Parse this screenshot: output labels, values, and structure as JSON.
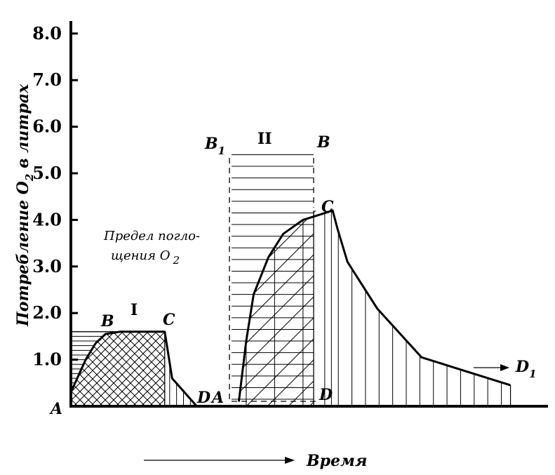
{
  "chart_data": {
    "type": "area",
    "title": "",
    "xlabel": "Время",
    "ylabel_parts": {
      "main": "Потребление O",
      "sub": "2",
      "rest": " в литрах"
    },
    "yticks": [
      "1.0",
      "2.0",
      "3.0",
      "4.0",
      "5.0",
      "6.0",
      "7.0",
      "8.0"
    ],
    "ylim": [
      0,
      8
    ],
    "grid": false,
    "annotation": {
      "line1": "Предел погло-",
      "line2": "щения O",
      "line2_sub": "2"
    },
    "regions": [
      {
        "label": "I",
        "points": {
          "A": "A",
          "B": "B",
          "C": "C",
          "D": "D"
        },
        "curve": [
          {
            "t": 0.0,
            "o2": 0.3
          },
          {
            "t": 0.6,
            "o2": 1.0
          },
          {
            "t": 1.0,
            "o2": 1.35
          },
          {
            "t": 1.4,
            "o2": 1.55
          },
          {
            "t": 2.0,
            "o2": 1.6
          },
          {
            "t": 3.8,
            "o2": 1.6
          },
          {
            "t": 4.1,
            "o2": 0.6
          },
          {
            "t": 4.6,
            "o2": 0.3
          },
          {
            "t": 5.1,
            "o2": 0.0
          }
        ],
        "demand_level": 1.6
      },
      {
        "label": "II",
        "points": {
          "A": "A",
          "B": "B",
          "B1": "B",
          "B1_sub": "1",
          "C": "C",
          "D": "D",
          "D1": "D",
          "D1_sub": "1"
        },
        "curve": [
          {
            "t": 6.8,
            "o2": 0.1
          },
          {
            "t": 7.1,
            "o2": 1.4
          },
          {
            "t": 7.4,
            "o2": 2.4
          },
          {
            "t": 8.0,
            "o2": 3.2
          },
          {
            "t": 8.6,
            "o2": 3.7
          },
          {
            "t": 9.4,
            "o2": 4.0
          },
          {
            "t": 10.3,
            "o2": 4.15
          },
          {
            "t": 10.6,
            "o2": 4.2
          },
          {
            "t": 10.8,
            "o2": 3.8
          },
          {
            "t": 11.2,
            "o2": 3.1
          },
          {
            "t": 12.4,
            "o2": 2.1
          },
          {
            "t": 14.2,
            "o2": 1.05
          },
          {
            "t": 16.6,
            "o2": 0.65
          },
          {
            "t": 17.8,
            "o2": 0.45
          }
        ],
        "demand_level": 5.4
      }
    ]
  },
  "colors": {
    "ink": "#000000",
    "background": "#ffffff"
  }
}
